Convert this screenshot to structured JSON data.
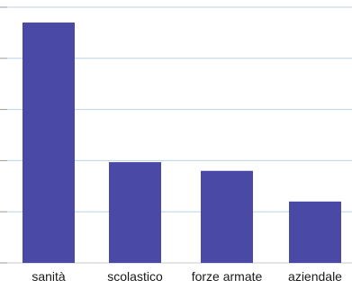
{
  "chart_data": {
    "type": "bar",
    "categories": [
      "sanità",
      "scolastico",
      "forze armate",
      "aziendale"
    ],
    "values": [
      4.7,
      1.97,
      1.8,
      1.2
    ],
    "ylim": [
      0,
      5
    ],
    "yticks": [
      0,
      1,
      2,
      3,
      4,
      5
    ],
    "grid": true,
    "title": "",
    "xlabel": "",
    "ylabel": "",
    "colors": {
      "bar": "#4a4aa6",
      "grid": "#bcd3e6",
      "axis": "#c9c9c9"
    }
  }
}
